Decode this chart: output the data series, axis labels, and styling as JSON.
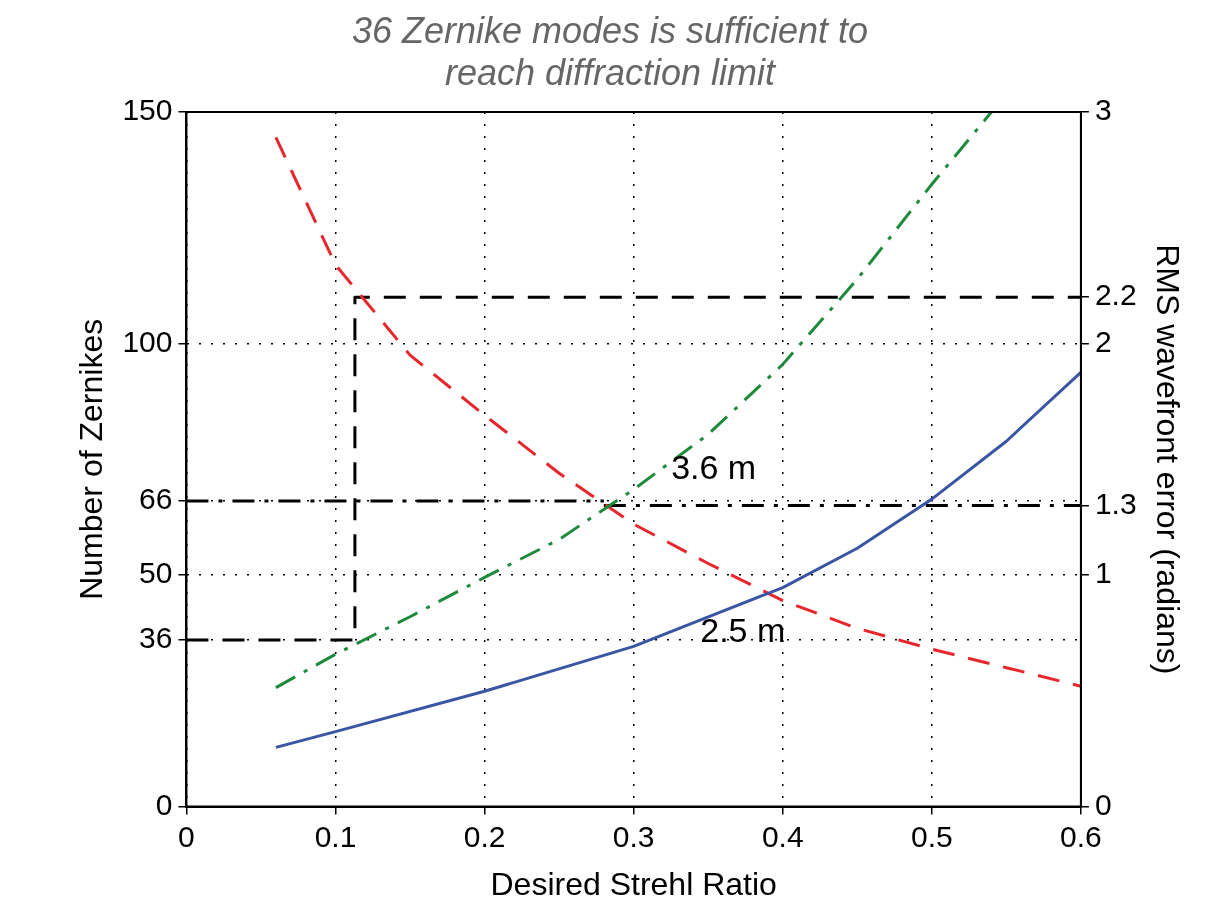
{
  "chart_data": {
    "type": "line",
    "title": "36 Zernike modes is sufficient to reach diffraction limit",
    "xlabel": "Desired Strehl Ratio",
    "ylabel": "Number of Zernikes",
    "y2label": "RMS wavefront error (radians)",
    "xlim": [
      0,
      0.6
    ],
    "xticks": [
      0,
      0.1,
      0.2,
      0.3,
      0.4,
      0.5,
      0.6
    ],
    "ylim": [
      0,
      150
    ],
    "yticks": [
      0,
      36,
      50,
      66,
      100,
      150
    ],
    "y2lim": [
      0,
      3
    ],
    "y2ticks": [
      0,
      1,
      1.3,
      2,
      2.2,
      3
    ],
    "grid": true,
    "legend": false,
    "marker": "none",
    "series": [
      {
        "name": "2.5 m",
        "color": "#3a55a4",
        "line_style": "solid",
        "x": [
          0.06,
          0.1,
          0.2,
          0.3,
          0.4,
          0.45,
          0.5,
          0.55,
          0.6
        ],
        "values": [
          12.8,
          16.2,
          24.9,
          34.6,
          47.3,
          55.8,
          66.4,
          78.9,
          93.8
        ]
      },
      {
        "name": "3.6 m",
        "color": "#1e8a3c",
        "line_style": "dashdot",
        "x": [
          0.06,
          0.1,
          0.15,
          0.2,
          0.25,
          0.3,
          0.35,
          0.4,
          0.45,
          0.5,
          0.54
        ],
        "values": [
          25.7,
          32.9,
          41,
          49.5,
          57.7,
          68.5,
          80.4,
          95.5,
          113.9,
          134.4,
          150
        ]
      },
      {
        "color": "#e8262b",
        "line_style": "dashed",
        "axis": "y2",
        "x": [
          0.06,
          0.1,
          0.15,
          0.2,
          0.25,
          0.3,
          0.35,
          0.4,
          0.45,
          0.5,
          0.55,
          0.6
        ],
        "values": [
          2.89,
          2.34,
          1.95,
          1.69,
          1.44,
          1.22,
          1.05,
          0.89,
          0.77,
          0.68,
          0.6,
          0.52
        ]
      },
      {
        "color": "#000000",
        "line_style": "dashed",
        "x": [
          0,
          0.113,
          0.113,
          0.6
        ],
        "values": [
          36,
          36,
          110,
          110
        ]
      },
      {
        "color": "#000000",
        "line_style": "dashdot",
        "x": [
          0,
          0.28
        ],
        "values": [
          66,
          66
        ]
      },
      {
        "color": "#000000",
        "line_style": "dashdot",
        "axis": "y2",
        "x": [
          0.28,
          0.6
        ],
        "values": [
          1.3,
          1.3
        ]
      }
    ]
  }
}
